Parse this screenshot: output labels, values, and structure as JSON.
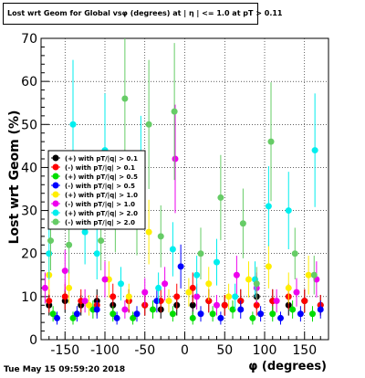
{
  "title": "Lost wrt Geom for Global vsφ (degrees) at | η | <= 1.0 at pT > 0.11",
  "footer_date": "Tue May 15 09:59:20 2018",
  "chart_data": {
    "type": "scatter",
    "xlabel": "φ (degrees)",
    "ylabel": "Lost wrt Geom (%)",
    "xlim": [
      -180,
      180
    ],
    "ylim": [
      0,
      70
    ],
    "xticks": [
      -150,
      -100,
      -50,
      0,
      50,
      100,
      150
    ],
    "yticks": [
      0,
      10,
      20,
      30,
      40,
      50,
      60,
      70
    ],
    "grid": true,
    "legend_position": "left",
    "series": [
      {
        "name": "(+) with pT/|q| > 0.1",
        "color": "#000000",
        "x": [
          -170,
          -150,
          -130,
          -110,
          -90,
          -70,
          -50,
          -30,
          -10,
          10,
          30,
          50,
          70,
          90,
          110,
          130,
          150,
          170
        ],
        "y": [
          8,
          9,
          8,
          9,
          8,
          9,
          8,
          7,
          8,
          8,
          9,
          8,
          9,
          10,
          9,
          8,
          9,
          8
        ]
      },
      {
        "name": "(-) with pT/|q| > 0.1",
        "color": "#ff0000",
        "x": [
          -170,
          -150,
          -130,
          -110,
          -90,
          -70,
          -50,
          -30,
          -10,
          10,
          30,
          50,
          70,
          90,
          110,
          130,
          150,
          170
        ],
        "y": [
          9,
          10,
          9,
          8,
          10,
          9,
          8,
          9,
          10,
          12,
          9,
          8,
          9,
          8,
          9,
          10,
          9,
          8
        ]
      },
      {
        "name": "(+) with pT/|q| > 0.5",
        "color": "#00dd00",
        "x": [
          -165,
          -140,
          -115,
          -90,
          -65,
          -40,
          -15,
          10,
          35,
          60,
          85,
          110,
          135,
          160
        ],
        "y": [
          6,
          5,
          7,
          6,
          5,
          7,
          6,
          5,
          6,
          7,
          5,
          6,
          7,
          6
        ]
      },
      {
        "name": "(-) with pT/|q| > 0.5",
        "color": "#0000ff",
        "x": [
          -160,
          -135,
          -110,
          -85,
          -60,
          -35,
          -5,
          20,
          45,
          70,
          95,
          120,
          145,
          170
        ],
        "y": [
          5,
          6,
          7,
          5,
          6,
          9,
          17,
          6,
          5,
          7,
          6,
          5,
          6,
          7
        ]
      },
      {
        "name": "(+) with pT/|q| > 1.0",
        "color": "#ffee00",
        "x": [
          -170,
          -145,
          -120,
          -95,
          -70,
          -45,
          -20,
          5,
          30,
          55,
          80,
          105,
          130,
          155
        ],
        "y": [
          15,
          12,
          8,
          14,
          10,
          25,
          9,
          11,
          13,
          10,
          14,
          17,
          12,
          15
        ]
      },
      {
        "name": "(-) with pT/|q| > 1.0",
        "color": "#ee00ee",
        "x": [
          -175,
          -150,
          -125,
          -100,
          -75,
          -50,
          -25,
          -12,
          15,
          40,
          65,
          90,
          115,
          140,
          165
        ],
        "y": [
          12,
          16,
          9,
          14,
          7,
          11,
          13,
          42,
          10,
          8,
          15,
          12,
          9,
          11,
          14
        ]
      },
      {
        "name": "(+) with pT/|q| > 2.0",
        "color": "#00eeee",
        "x": [
          -170,
          -140,
          -125,
          -110,
          -100,
          -80,
          -55,
          -33,
          -15,
          15,
          40,
          63,
          88,
          105,
          130,
          163
        ],
        "y": [
          20,
          50,
          25,
          20,
          44,
          13,
          40,
          12,
          21,
          15,
          18,
          10,
          14,
          31,
          30,
          44
        ]
      },
      {
        "name": "(-) with pT/|q| > 2.0",
        "color": "#66cc66",
        "x": [
          -168,
          -145,
          -105,
          -87,
          -75,
          -60,
          -45,
          -30,
          -13,
          20,
          45,
          73,
          90,
          108,
          138,
          162
        ],
        "y": [
          23,
          22,
          23,
          29,
          56,
          28,
          50,
          24,
          53,
          20,
          33,
          27,
          13,
          46,
          20,
          15
        ]
      }
    ]
  }
}
